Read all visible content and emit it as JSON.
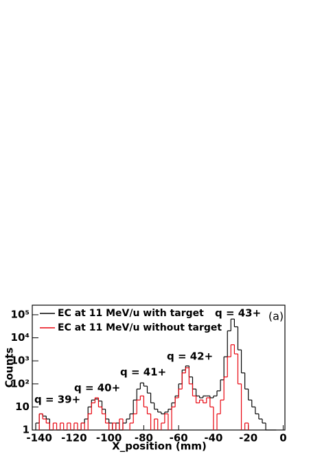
{
  "chart_data": {
    "type": "histogram",
    "x_label": "X_position  (mm)",
    "y_label": "Counts",
    "log_y": true,
    "legend": "top-left",
    "panel_label": "(a)",
    "annotations": [
      "q = 39+",
      "q = 40+",
      "q = 41+",
      "q = 42+",
      "q = 43+"
    ],
    "xlim": [
      -144,
      1
    ],
    "ylim": [
      1,
      260000
    ],
    "xticks": [
      -140,
      -120,
      -100,
      -80,
      -60,
      -40,
      -20,
      0
    ],
    "yticks": [
      1,
      10,
      {
        "value": 100,
        "label": "10²"
      },
      {
        "value": 1000,
        "label": "10³"
      },
      {
        "value": 10000,
        "label": "10⁴"
      },
      {
        "value": 100000,
        "label": "10⁵"
      }
    ],
    "bins": [
      -142,
      -140,
      -138,
      -136,
      -134,
      -132,
      -130,
      -128,
      -126,
      -124,
      -122,
      -120,
      -118,
      -116,
      -114,
      -112,
      -110,
      -108,
      -106,
      -104,
      -102,
      -100,
      -98,
      -96,
      -94,
      -92,
      -90,
      -88,
      -86,
      -84,
      -82,
      -80,
      -78,
      -76,
      -74,
      -72,
      -70,
      -68,
      -66,
      -64,
      -62,
      -60,
      -58,
      -56,
      -54,
      -52,
      -50,
      -48,
      -46,
      -44,
      -42,
      -40,
      -38,
      -36,
      -34,
      -32,
      -30,
      -28,
      -26,
      -24,
      -22,
      -20,
      -18,
      -16,
      -14,
      -12,
      -10,
      -8,
      -6,
      -4
    ],
    "series": [
      {
        "name": "EC at 11 MeV/u with target",
        "color": "#000000",
        "values": [
          2,
          5,
          4,
          3,
          1,
          null,
          1,
          null,
          1,
          null,
          1,
          null,
          1,
          2,
          3,
          10,
          20,
          22,
          18,
          8,
          3,
          2,
          1,
          2,
          1,
          2,
          3,
          5,
          20,
          60,
          110,
          80,
          40,
          15,
          8,
          6,
          5,
          6,
          8,
          15,
          30,
          100,
          400,
          600,
          200,
          60,
          30,
          25,
          30,
          30,
          25,
          30,
          50,
          150,
          1500,
          20000,
          65000,
          30000,
          3000,
          300,
          60,
          20,
          10,
          5,
          3,
          2,
          1,
          1,
          1
        ]
      },
      {
        "name": "EC at 11 MeV/u without target",
        "color": "#e8000b",
        "values": [
          null,
          5,
          3,
          2,
          null,
          2,
          null,
          2,
          null,
          2,
          null,
          2,
          null,
          2,
          null,
          5,
          15,
          25,
          10,
          5,
          2,
          null,
          2,
          null,
          3,
          null,
          null,
          2,
          5,
          20,
          30,
          10,
          5,
          null,
          3,
          null,
          2,
          5,
          null,
          10,
          25,
          60,
          300,
          500,
          100,
          30,
          15,
          20,
          15,
          25,
          10,
          null,
          5,
          20,
          200,
          1500,
          5000,
          2000,
          100,
          null,
          2,
          null,
          null,
          null,
          null,
          null,
          null,
          null,
          null
        ]
      }
    ]
  }
}
